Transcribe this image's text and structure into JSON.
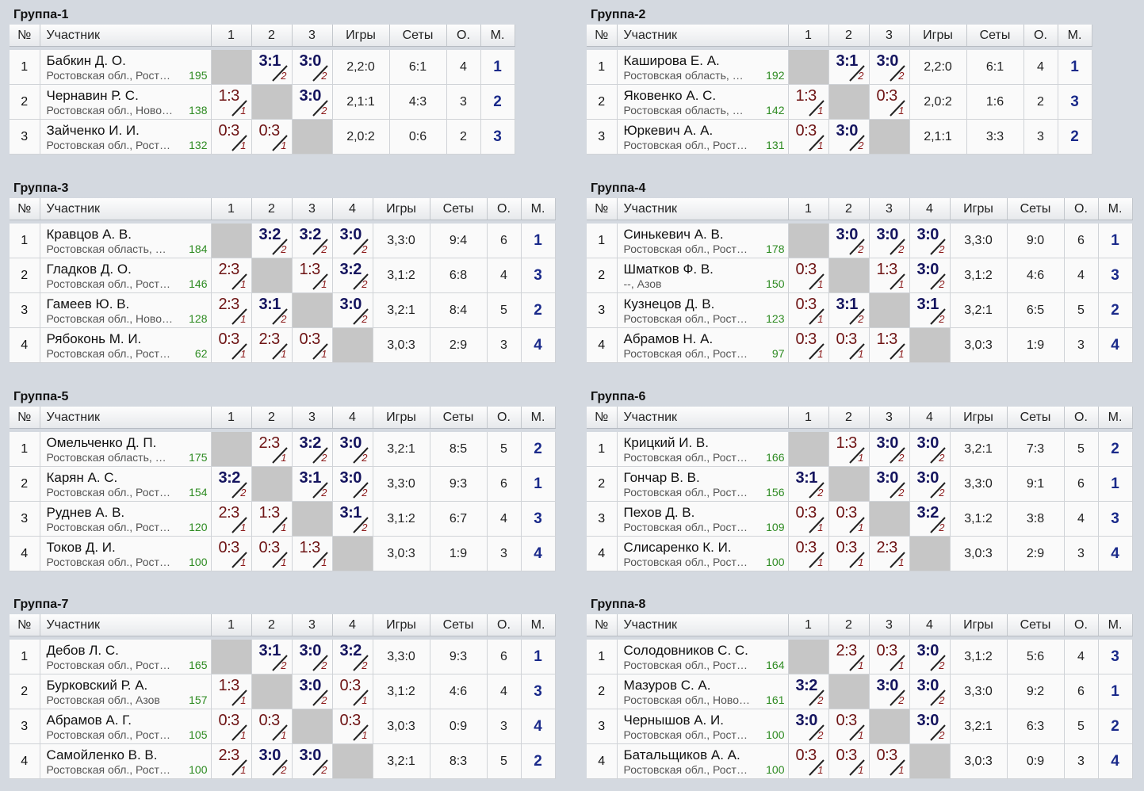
{
  "headers": {
    "num": "№",
    "name": "Участник",
    "games": "Игры",
    "sets": "Сеты",
    "score": "О.",
    "place": "М."
  },
  "groups": [
    {
      "title": "Группа-1",
      "cols": [
        "1",
        "2",
        "3"
      ],
      "players": [
        {
          "num": "1",
          "name": "Бабкин Д. О.",
          "region": "Ростовская обл., Рост…",
          "rating": "195",
          "results": [
            "",
            "3:1",
            "3:0"
          ],
          "pts": [
            "",
            "2",
            "2"
          ],
          "games": "2,2:0",
          "sets": "6:1",
          "score": "4",
          "place": "1"
        },
        {
          "num": "2",
          "name": "Чернавин Р. С.",
          "region": "Ростовская обл., Ново…",
          "rating": "138",
          "results": [
            "1:3",
            "",
            "3:0"
          ],
          "pts": [
            "1",
            "",
            "2"
          ],
          "games": "2,1:1",
          "sets": "4:3",
          "score": "3",
          "place": "2"
        },
        {
          "num": "3",
          "name": "Зайченко И. И.",
          "region": "Ростовская обл., Рост…",
          "rating": "132",
          "results": [
            "0:3",
            "0:3",
            ""
          ],
          "pts": [
            "1",
            "1",
            ""
          ],
          "games": "2,0:2",
          "sets": "0:6",
          "score": "2",
          "place": "3"
        }
      ]
    },
    {
      "title": "Группа-2",
      "cols": [
        "1",
        "2",
        "3"
      ],
      "players": [
        {
          "num": "1",
          "name": "Каширова Е. А.",
          "region": "Ростовская область, …",
          "rating": "192",
          "results": [
            "",
            "3:1",
            "3:0"
          ],
          "pts": [
            "",
            "2",
            "2"
          ],
          "games": "2,2:0",
          "sets": "6:1",
          "score": "4",
          "place": "1"
        },
        {
          "num": "2",
          "name": "Яковенко А. С.",
          "region": "Ростовская область, …",
          "rating": "142",
          "results": [
            "1:3",
            "",
            "0:3"
          ],
          "pts": [
            "1",
            "",
            "1"
          ],
          "games": "2,0:2",
          "sets": "1:6",
          "score": "2",
          "place": "3"
        },
        {
          "num": "3",
          "name": "Юркевич А. А.",
          "region": "Ростовская обл., Рост…",
          "rating": "131",
          "results": [
            "0:3",
            "3:0",
            ""
          ],
          "pts": [
            "1",
            "2",
            ""
          ],
          "games": "2,1:1",
          "sets": "3:3",
          "score": "3",
          "place": "2"
        }
      ]
    },
    {
      "title": "Группа-3",
      "cols": [
        "1",
        "2",
        "3",
        "4"
      ],
      "players": [
        {
          "num": "1",
          "name": "Кравцов А. В.",
          "region": "Ростовская область, …",
          "rating": "184",
          "results": [
            "",
            "3:2",
            "3:2",
            "3:0"
          ],
          "pts": [
            "",
            "2",
            "2",
            "2"
          ],
          "games": "3,3:0",
          "sets": "9:4",
          "score": "6",
          "place": "1"
        },
        {
          "num": "2",
          "name": "Гладков Д. О.",
          "region": "Ростовская обл., Рост…",
          "rating": "146",
          "results": [
            "2:3",
            "",
            "1:3",
            "3:2"
          ],
          "pts": [
            "1",
            "",
            "1",
            "2"
          ],
          "games": "3,1:2",
          "sets": "6:8",
          "score": "4",
          "place": "3"
        },
        {
          "num": "3",
          "name": "Гамеев Ю. В.",
          "region": "Ростовская обл., Ново…",
          "rating": "128",
          "results": [
            "2:3",
            "3:1",
            "",
            "3:0"
          ],
          "pts": [
            "1",
            "2",
            "",
            "2"
          ],
          "games": "3,2:1",
          "sets": "8:4",
          "score": "5",
          "place": "2"
        },
        {
          "num": "4",
          "name": "Рябоконь М. И.",
          "region": "Ростовская обл., Рост…",
          "rating": "62",
          "results": [
            "0:3",
            "2:3",
            "0:3",
            ""
          ],
          "pts": [
            "1",
            "1",
            "1",
            ""
          ],
          "games": "3,0:3",
          "sets": "2:9",
          "score": "3",
          "place": "4"
        }
      ]
    },
    {
      "title": "Группа-4",
      "cols": [
        "1",
        "2",
        "3",
        "4"
      ],
      "players": [
        {
          "num": "1",
          "name": "Синькевич А. В.",
          "region": "Ростовская обл., Рост…",
          "rating": "178",
          "results": [
            "",
            "3:0",
            "3:0",
            "3:0"
          ],
          "pts": [
            "",
            "2",
            "2",
            "2"
          ],
          "games": "3,3:0",
          "sets": "9:0",
          "score": "6",
          "place": "1"
        },
        {
          "num": "2",
          "name": "Шматков Ф. В.",
          "region": "--, Азов",
          "rating": "150",
          "results": [
            "0:3",
            "",
            "1:3",
            "3:0"
          ],
          "pts": [
            "1",
            "",
            "1",
            "2"
          ],
          "games": "3,1:2",
          "sets": "4:6",
          "score": "4",
          "place": "3"
        },
        {
          "num": "3",
          "name": "Кузнецов Д. В.",
          "region": "Ростовская обл., Рост…",
          "rating": "123",
          "results": [
            "0:3",
            "3:1",
            "",
            "3:1"
          ],
          "pts": [
            "1",
            "2",
            "",
            "2"
          ],
          "games": "3,2:1",
          "sets": "6:5",
          "score": "5",
          "place": "2"
        },
        {
          "num": "4",
          "name": "Абрамов Н. А.",
          "region": "Ростовская обл., Рост…",
          "rating": "97",
          "results": [
            "0:3",
            "0:3",
            "1:3",
            ""
          ],
          "pts": [
            "1",
            "1",
            "1",
            ""
          ],
          "games": "3,0:3",
          "sets": "1:9",
          "score": "3",
          "place": "4"
        }
      ]
    },
    {
      "title": "Группа-5",
      "cols": [
        "1",
        "2",
        "3",
        "4"
      ],
      "players": [
        {
          "num": "1",
          "name": "Омельченко Д. П.",
          "region": "Ростовская область, …",
          "rating": "175",
          "results": [
            "",
            "2:3",
            "3:2",
            "3:0"
          ],
          "pts": [
            "",
            "1",
            "2",
            "2"
          ],
          "games": "3,2:1",
          "sets": "8:5",
          "score": "5",
          "place": "2"
        },
        {
          "num": "2",
          "name": "Карян А. С.",
          "region": "Ростовская обл., Рост…",
          "rating": "154",
          "results": [
            "3:2",
            "",
            "3:1",
            "3:0"
          ],
          "pts": [
            "2",
            "",
            "2",
            "2"
          ],
          "games": "3,3:0",
          "sets": "9:3",
          "score": "6",
          "place": "1"
        },
        {
          "num": "3",
          "name": "Руднев А. В.",
          "region": "Ростовская обл., Рост…",
          "rating": "120",
          "results": [
            "2:3",
            "1:3",
            "",
            "3:1"
          ],
          "pts": [
            "1",
            "1",
            "",
            "2"
          ],
          "games": "3,1:2",
          "sets": "6:7",
          "score": "4",
          "place": "3"
        },
        {
          "num": "4",
          "name": "Токов Д. И.",
          "region": "Ростовская обл., Рост…",
          "rating": "100",
          "results": [
            "0:3",
            "0:3",
            "1:3",
            ""
          ],
          "pts": [
            "1",
            "1",
            "1",
            ""
          ],
          "games": "3,0:3",
          "sets": "1:9",
          "score": "3",
          "place": "4"
        }
      ]
    },
    {
      "title": "Группа-6",
      "cols": [
        "1",
        "2",
        "3",
        "4"
      ],
      "players": [
        {
          "num": "1",
          "name": "Крицкий И. В.",
          "region": "Ростовская обл., Рост…",
          "rating": "166",
          "results": [
            "",
            "1:3",
            "3:0",
            "3:0"
          ],
          "pts": [
            "",
            "1",
            "2",
            "2"
          ],
          "games": "3,2:1",
          "sets": "7:3",
          "score": "5",
          "place": "2"
        },
        {
          "num": "2",
          "name": "Гончар В. В.",
          "region": "Ростовская обл., Рост…",
          "rating": "156",
          "results": [
            "3:1",
            "",
            "3:0",
            "3:0"
          ],
          "pts": [
            "2",
            "",
            "2",
            "2"
          ],
          "games": "3,3:0",
          "sets": "9:1",
          "score": "6",
          "place": "1"
        },
        {
          "num": "3",
          "name": "Пехов Д. В.",
          "region": "Ростовская обл., Рост…",
          "rating": "109",
          "results": [
            "0:3",
            "0:3",
            "",
            "3:2"
          ],
          "pts": [
            "1",
            "1",
            "",
            "2"
          ],
          "games": "3,1:2",
          "sets": "3:8",
          "score": "4",
          "place": "3"
        },
        {
          "num": "4",
          "name": "Слисаренко К. И.",
          "region": "Ростовская обл., Рост…",
          "rating": "100",
          "results": [
            "0:3",
            "0:3",
            "2:3",
            ""
          ],
          "pts": [
            "1",
            "1",
            "1",
            ""
          ],
          "games": "3,0:3",
          "sets": "2:9",
          "score": "3",
          "place": "4"
        }
      ]
    },
    {
      "title": "Группа-7",
      "cols": [
        "1",
        "2",
        "3",
        "4"
      ],
      "players": [
        {
          "num": "1",
          "name": "Дебов Л. С.",
          "region": "Ростовская обл., Рост…",
          "rating": "165",
          "results": [
            "",
            "3:1",
            "3:0",
            "3:2"
          ],
          "pts": [
            "",
            "2",
            "2",
            "2"
          ],
          "games": "3,3:0",
          "sets": "9:3",
          "score": "6",
          "place": "1"
        },
        {
          "num": "2",
          "name": "Бурковский Р. А.",
          "region": "Ростовская обл., Азов",
          "rating": "157",
          "results": [
            "1:3",
            "",
            "3:0",
            "0:3"
          ],
          "pts": [
            "1",
            "",
            "2",
            "1"
          ],
          "games": "3,1:2",
          "sets": "4:6",
          "score": "4",
          "place": "3"
        },
        {
          "num": "3",
          "name": "Абрамов А. Г.",
          "region": "Ростовская обл., Рост…",
          "rating": "105",
          "results": [
            "0:3",
            "0:3",
            "",
            "0:3"
          ],
          "pts": [
            "1",
            "1",
            "",
            "1"
          ],
          "games": "3,0:3",
          "sets": "0:9",
          "score": "3",
          "place": "4"
        },
        {
          "num": "4",
          "name": "Самойленко В. В.",
          "region": "Ростовская обл., Рост…",
          "rating": "100",
          "results": [
            "2:3",
            "3:0",
            "3:0",
            ""
          ],
          "pts": [
            "1",
            "2",
            "2",
            ""
          ],
          "games": "3,2:1",
          "sets": "8:3",
          "score": "5",
          "place": "2"
        }
      ]
    },
    {
      "title": "Группа-8",
      "cols": [
        "1",
        "2",
        "3",
        "4"
      ],
      "players": [
        {
          "num": "1",
          "name": "Солодовников С. С.",
          "region": "Ростовская обл., Рост…",
          "rating": "164",
          "results": [
            "",
            "2:3",
            "0:3",
            "3:0"
          ],
          "pts": [
            "",
            "1",
            "1",
            "2"
          ],
          "games": "3,1:2",
          "sets": "5:6",
          "score": "4",
          "place": "3"
        },
        {
          "num": "2",
          "name": "Мазуров С. А.",
          "region": "Ростовская обл., Ново…",
          "rating": "161",
          "results": [
            "3:2",
            "",
            "3:0",
            "3:0"
          ],
          "pts": [
            "2",
            "",
            "2",
            "2"
          ],
          "games": "3,3:0",
          "sets": "9:2",
          "score": "6",
          "place": "1"
        },
        {
          "num": "3",
          "name": "Чернышов А. И.",
          "region": "Ростовская обл., Рост…",
          "rating": "100",
          "results": [
            "3:0",
            "0:3",
            "",
            "3:0"
          ],
          "pts": [
            "2",
            "1",
            "",
            "2"
          ],
          "games": "3,2:1",
          "sets": "6:3",
          "score": "5",
          "place": "2"
        },
        {
          "num": "4",
          "name": "Батальщиков А. А.",
          "region": "Ростовская обл., Рост…",
          "rating": "100",
          "results": [
            "0:3",
            "0:3",
            "0:3",
            ""
          ],
          "pts": [
            "1",
            "1",
            "1",
            ""
          ],
          "games": "3,0:3",
          "sets": "0:9",
          "score": "3",
          "place": "4"
        }
      ]
    }
  ]
}
